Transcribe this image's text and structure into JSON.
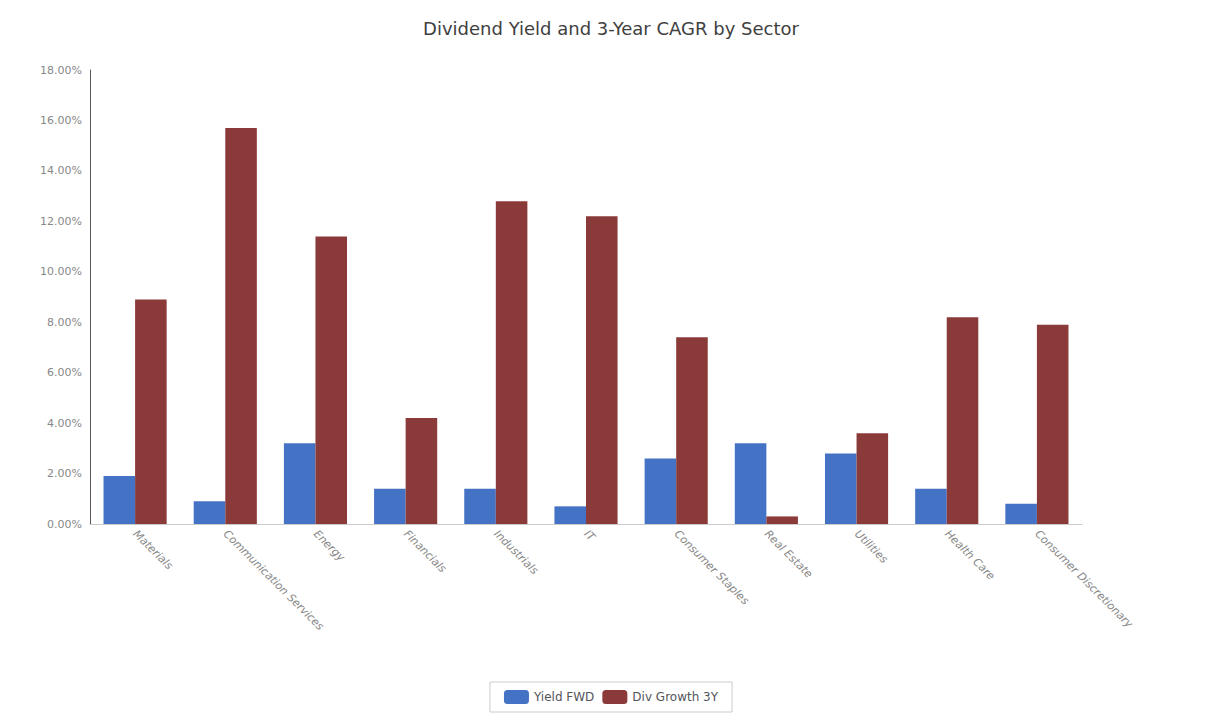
{
  "chart_data": {
    "type": "bar",
    "title": "Dividend Yield and 3-Year CAGR by Sector",
    "categories": [
      "Materials",
      "Communication Services",
      "Energy",
      "Financials",
      "Industrials",
      "IT",
      "Consumer Staples",
      "Real Estate",
      "Utilities",
      "Health Care",
      "Consumer Discretionary"
    ],
    "series": [
      {
        "name": "Yield FWD",
        "color": "#4472C4",
        "values": [
          0.019,
          0.009,
          0.032,
          0.014,
          0.014,
          0.007,
          0.026,
          0.032,
          0.028,
          0.014,
          0.008
        ]
      },
      {
        "name": "Div Growth 3Y",
        "color": "#8B3A3A",
        "values": [
          0.089,
          0.157,
          0.114,
          0.042,
          0.128,
          0.122,
          0.074,
          0.003,
          0.036,
          0.082,
          0.079
        ]
      }
    ],
    "ylim": [
      0,
      0.18
    ],
    "yticks": [
      {
        "value": 0.0,
        "label": "0.00%"
      },
      {
        "value": 0.02,
        "label": "2.00%"
      },
      {
        "value": 0.04,
        "label": "4.00%"
      },
      {
        "value": 0.06,
        "label": "6.00%"
      },
      {
        "value": 0.08,
        "label": "8.00%"
      },
      {
        "value": 0.1,
        "label": "10.00%"
      },
      {
        "value": 0.12,
        "label": "12.00%"
      },
      {
        "value": 0.14,
        "label": "14.00%"
      },
      {
        "value": 0.16,
        "label": "16.00%"
      },
      {
        "value": 0.18,
        "label": "18.00%"
      }
    ],
    "grid": false,
    "legend": "bottom"
  }
}
